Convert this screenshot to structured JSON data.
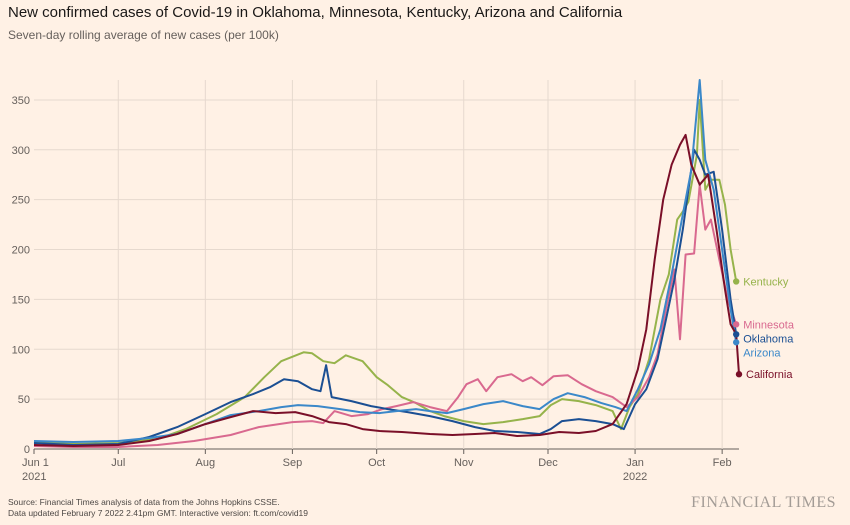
{
  "title": "New confirmed cases of Covid-19 in Oklahoma, Minnesota, Kentucky, Arizona and California",
  "subtitle": "Seven-day rolling average of new cases (per 100k)",
  "footer": {
    "source": "Source: Financial Times analysis of data from the Johns Hopkins CSSE.",
    "updated": "Data updated February 7 2022 2.41pm GMT. Interactive version: ft.com/covid19"
  },
  "brand": "FINANCIAL TIMES",
  "chart_data": {
    "type": "line",
    "title": "New confirmed cases of Covid-19 in Oklahoma, Minnesota, Kentucky, Arizona and California",
    "subtitle": "Seven-day rolling average of new cases (per 100k)",
    "x_range": [
      "2021-06-01",
      "2022-02-07"
    ],
    "ylim": [
      0,
      370
    ],
    "y_ticks": [
      0,
      50,
      100,
      150,
      200,
      250,
      300,
      350
    ],
    "x_ticks": [
      {
        "date": "2021-06-01",
        "label": "Jun 1",
        "sublabel": "2021"
      },
      {
        "date": "2021-07-01",
        "label": "Jul",
        "sublabel": ""
      },
      {
        "date": "2021-08-01",
        "label": "Aug",
        "sublabel": ""
      },
      {
        "date": "2021-09-01",
        "label": "Sep",
        "sublabel": ""
      },
      {
        "date": "2021-10-01",
        "label": "Oct",
        "sublabel": ""
      },
      {
        "date": "2021-11-01",
        "label": "Nov",
        "sublabel": ""
      },
      {
        "date": "2021-12-01",
        "label": "Dec",
        "sublabel": ""
      },
      {
        "date": "2022-01-01",
        "label": "Jan",
        "sublabel": "2022"
      },
      {
        "date": "2022-02-01",
        "label": "Feb",
        "sublabel": ""
      }
    ],
    "grid": true,
    "series": [
      {
        "name": "Kentucky",
        "color": "#96b34b",
        "points": [
          [
            "2021-06-01",
            7
          ],
          [
            "2021-06-15",
            5
          ],
          [
            "2021-07-01",
            6
          ],
          [
            "2021-07-15",
            10
          ],
          [
            "2021-07-25",
            20
          ],
          [
            "2021-08-05",
            35
          ],
          [
            "2021-08-15",
            52
          ],
          [
            "2021-08-22",
            72
          ],
          [
            "2021-08-28",
            88
          ],
          [
            "2021-09-05",
            97
          ],
          [
            "2021-09-08",
            96
          ],
          [
            "2021-09-12",
            88
          ],
          [
            "2021-09-16",
            86
          ],
          [
            "2021-09-20",
            94
          ],
          [
            "2021-09-26",
            88
          ],
          [
            "2021-10-01",
            72
          ],
          [
            "2021-10-05",
            64
          ],
          [
            "2021-10-10",
            52
          ],
          [
            "2021-10-15",
            46
          ],
          [
            "2021-10-20",
            38
          ],
          [
            "2021-10-25",
            33
          ],
          [
            "2021-11-01",
            28
          ],
          [
            "2021-11-08",
            25
          ],
          [
            "2021-11-15",
            27
          ],
          [
            "2021-11-22",
            30
          ],
          [
            "2021-11-28",
            33
          ],
          [
            "2021-12-02",
            44
          ],
          [
            "2021-12-06",
            50
          ],
          [
            "2021-12-12",
            48
          ],
          [
            "2021-12-18",
            44
          ],
          [
            "2021-12-24",
            38
          ],
          [
            "2021-12-27",
            20
          ],
          [
            "2021-12-30",
            42
          ],
          [
            "2022-01-02",
            55
          ],
          [
            "2022-01-06",
            90
          ],
          [
            "2022-01-10",
            150
          ],
          [
            "2022-01-13",
            175
          ],
          [
            "2022-01-16",
            230
          ],
          [
            "2022-01-18",
            238
          ],
          [
            "2022-01-20",
            248
          ],
          [
            "2022-01-23",
            295
          ],
          [
            "2022-01-24",
            350
          ],
          [
            "2022-01-26",
            260
          ],
          [
            "2022-01-28",
            270
          ],
          [
            "2022-01-31",
            270
          ],
          [
            "2022-02-02",
            245
          ],
          [
            "2022-02-04",
            200
          ],
          [
            "2022-02-06",
            168
          ]
        ]
      },
      {
        "name": "Minnesota",
        "color": "#d9698f",
        "points": [
          [
            "2021-06-01",
            3
          ],
          [
            "2021-06-15",
            2
          ],
          [
            "2021-07-01",
            2
          ],
          [
            "2021-07-15",
            4
          ],
          [
            "2021-07-28",
            8
          ],
          [
            "2021-08-10",
            14
          ],
          [
            "2021-08-20",
            22
          ],
          [
            "2021-09-01",
            27
          ],
          [
            "2021-09-08",
            28
          ],
          [
            "2021-09-12",
            26
          ],
          [
            "2021-09-16",
            38
          ],
          [
            "2021-09-22",
            33
          ],
          [
            "2021-09-28",
            35
          ],
          [
            "2021-10-03",
            40
          ],
          [
            "2021-10-08",
            43
          ],
          [
            "2021-10-14",
            47
          ],
          [
            "2021-10-20",
            42
          ],
          [
            "2021-10-26",
            38
          ],
          [
            "2021-10-30",
            52
          ],
          [
            "2021-11-02",
            65
          ],
          [
            "2021-11-06",
            70
          ],
          [
            "2021-11-09",
            58
          ],
          [
            "2021-11-13",
            72
          ],
          [
            "2021-11-18",
            75
          ],
          [
            "2021-11-22",
            68
          ],
          [
            "2021-11-25",
            72
          ],
          [
            "2021-11-29",
            64
          ],
          [
            "2021-12-03",
            73
          ],
          [
            "2021-12-08",
            74
          ],
          [
            "2021-12-13",
            65
          ],
          [
            "2021-12-18",
            58
          ],
          [
            "2021-12-24",
            52
          ],
          [
            "2021-12-29",
            42
          ],
          [
            "2022-01-02",
            52
          ],
          [
            "2022-01-06",
            72
          ],
          [
            "2022-01-09",
            95
          ],
          [
            "2022-01-12",
            140
          ],
          [
            "2022-01-15",
            180
          ],
          [
            "2022-01-17",
            110
          ],
          [
            "2022-01-19",
            195
          ],
          [
            "2022-01-22",
            196
          ],
          [
            "2022-01-24",
            265
          ],
          [
            "2022-01-26",
            220
          ],
          [
            "2022-01-28",
            230
          ],
          [
            "2022-01-31",
            190
          ],
          [
            "2022-02-03",
            150
          ],
          [
            "2022-02-06",
            125
          ]
        ]
      },
      {
        "name": "Oklahoma",
        "color": "#1b4f93",
        "points": [
          [
            "2021-06-01",
            6
          ],
          [
            "2021-06-15",
            4
          ],
          [
            "2021-07-01",
            5
          ],
          [
            "2021-07-12",
            12
          ],
          [
            "2021-07-22",
            22
          ],
          [
            "2021-08-01",
            35
          ],
          [
            "2021-08-10",
            47
          ],
          [
            "2021-08-18",
            55
          ],
          [
            "2021-08-24",
            62
          ],
          [
            "2021-08-29",
            70
          ],
          [
            "2021-09-03",
            68
          ],
          [
            "2021-09-08",
            60
          ],
          [
            "2021-09-11",
            58
          ],
          [
            "2021-09-13",
            84
          ],
          [
            "2021-09-15",
            52
          ],
          [
            "2021-09-22",
            48
          ],
          [
            "2021-09-29",
            43
          ],
          [
            "2021-10-05",
            40
          ],
          [
            "2021-10-12",
            37
          ],
          [
            "2021-10-20",
            33
          ],
          [
            "2021-10-28",
            28
          ],
          [
            "2021-11-05",
            22
          ],
          [
            "2021-11-12",
            18
          ],
          [
            "2021-11-20",
            17
          ],
          [
            "2021-11-28",
            15
          ],
          [
            "2021-12-02",
            20
          ],
          [
            "2021-12-06",
            28
          ],
          [
            "2021-12-12",
            30
          ],
          [
            "2021-12-18",
            28
          ],
          [
            "2021-12-24",
            25
          ],
          [
            "2021-12-28",
            20
          ],
          [
            "2022-01-01",
            45
          ],
          [
            "2022-01-05",
            60
          ],
          [
            "2022-01-09",
            90
          ],
          [
            "2022-01-12",
            130
          ],
          [
            "2022-01-15",
            170
          ],
          [
            "2022-01-18",
            220
          ],
          [
            "2022-01-20",
            260
          ],
          [
            "2022-01-22",
            300
          ],
          [
            "2022-01-24",
            290
          ],
          [
            "2022-01-26",
            275
          ],
          [
            "2022-01-29",
            278
          ],
          [
            "2022-02-01",
            220
          ],
          [
            "2022-02-04",
            150
          ],
          [
            "2022-02-06",
            115
          ]
        ]
      },
      {
        "name": "Arizona",
        "color": "#3b88c9",
        "points": [
          [
            "2021-06-01",
            8
          ],
          [
            "2021-06-15",
            7
          ],
          [
            "2021-07-01",
            8
          ],
          [
            "2021-07-12",
            11
          ],
          [
            "2021-07-22",
            15
          ],
          [
            "2021-08-01",
            25
          ],
          [
            "2021-08-10",
            34
          ],
          [
            "2021-08-20",
            38
          ],
          [
            "2021-08-28",
            42
          ],
          [
            "2021-09-03",
            44
          ],
          [
            "2021-09-10",
            43
          ],
          [
            "2021-09-18",
            40
          ],
          [
            "2021-09-25",
            37
          ],
          [
            "2021-10-02",
            36
          ],
          [
            "2021-10-08",
            38
          ],
          [
            "2021-10-15",
            40
          ],
          [
            "2021-10-20",
            38
          ],
          [
            "2021-10-26",
            36
          ],
          [
            "2021-11-01",
            40
          ],
          [
            "2021-11-08",
            45
          ],
          [
            "2021-11-15",
            48
          ],
          [
            "2021-11-22",
            43
          ],
          [
            "2021-11-28",
            40
          ],
          [
            "2021-12-03",
            50
          ],
          [
            "2021-12-08",
            56
          ],
          [
            "2021-12-14",
            52
          ],
          [
            "2021-12-20",
            46
          ],
          [
            "2021-12-25",
            42
          ],
          [
            "2021-12-29",
            38
          ],
          [
            "2022-01-02",
            60
          ],
          [
            "2022-01-06",
            85
          ],
          [
            "2022-01-10",
            120
          ],
          [
            "2022-01-14",
            175
          ],
          [
            "2022-01-18",
            235
          ],
          [
            "2022-01-21",
            280
          ],
          [
            "2022-01-23",
            340
          ],
          [
            "2022-01-24",
            370
          ],
          [
            "2022-01-26",
            290
          ],
          [
            "2022-01-29",
            260
          ],
          [
            "2022-02-01",
            200
          ],
          [
            "2022-02-04",
            140
          ],
          [
            "2022-02-06",
            107
          ]
        ]
      },
      {
        "name": "California",
        "color": "#7a0f28",
        "points": [
          [
            "2021-06-01",
            4
          ],
          [
            "2021-06-15",
            3
          ],
          [
            "2021-07-01",
            4
          ],
          [
            "2021-07-12",
            8
          ],
          [
            "2021-07-22",
            15
          ],
          [
            "2021-08-01",
            25
          ],
          [
            "2021-08-10",
            32
          ],
          [
            "2021-08-18",
            38
          ],
          [
            "2021-08-26",
            36
          ],
          [
            "2021-09-02",
            37
          ],
          [
            "2021-09-08",
            33
          ],
          [
            "2021-09-14",
            27
          ],
          [
            "2021-09-20",
            25
          ],
          [
            "2021-09-26",
            20
          ],
          [
            "2021-10-02",
            18
          ],
          [
            "2021-10-10",
            17
          ],
          [
            "2021-10-20",
            15
          ],
          [
            "2021-10-28",
            14
          ],
          [
            "2021-11-05",
            15
          ],
          [
            "2021-11-12",
            16
          ],
          [
            "2021-11-20",
            13
          ],
          [
            "2021-11-28",
            14
          ],
          [
            "2021-12-05",
            17
          ],
          [
            "2021-12-12",
            16
          ],
          [
            "2021-12-18",
            18
          ],
          [
            "2021-12-24",
            25
          ],
          [
            "2021-12-29",
            45
          ],
          [
            "2022-01-02",
            80
          ],
          [
            "2022-01-05",
            120
          ],
          [
            "2022-01-08",
            190
          ],
          [
            "2022-01-11",
            250
          ],
          [
            "2022-01-14",
            285
          ],
          [
            "2022-01-17",
            305
          ],
          [
            "2022-01-19",
            315
          ],
          [
            "2022-01-21",
            285
          ],
          [
            "2022-01-24",
            265
          ],
          [
            "2022-01-27",
            275
          ],
          [
            "2022-01-30",
            220
          ],
          [
            "2022-02-02",
            160
          ],
          [
            "2022-02-04",
            125
          ],
          [
            "2022-02-06",
            115
          ],
          [
            "2022-02-07",
            75
          ]
        ]
      }
    ],
    "end_labels": [
      {
        "series": "Kentucky",
        "text": "Kentucky"
      },
      {
        "series": "Minnesota",
        "text": "Minnesota"
      },
      {
        "series": "Oklahoma",
        "text": "Oklahoma"
      },
      {
        "series": "Arizona",
        "text": "Arizona"
      },
      {
        "series": "California",
        "text": "California"
      }
    ]
  }
}
